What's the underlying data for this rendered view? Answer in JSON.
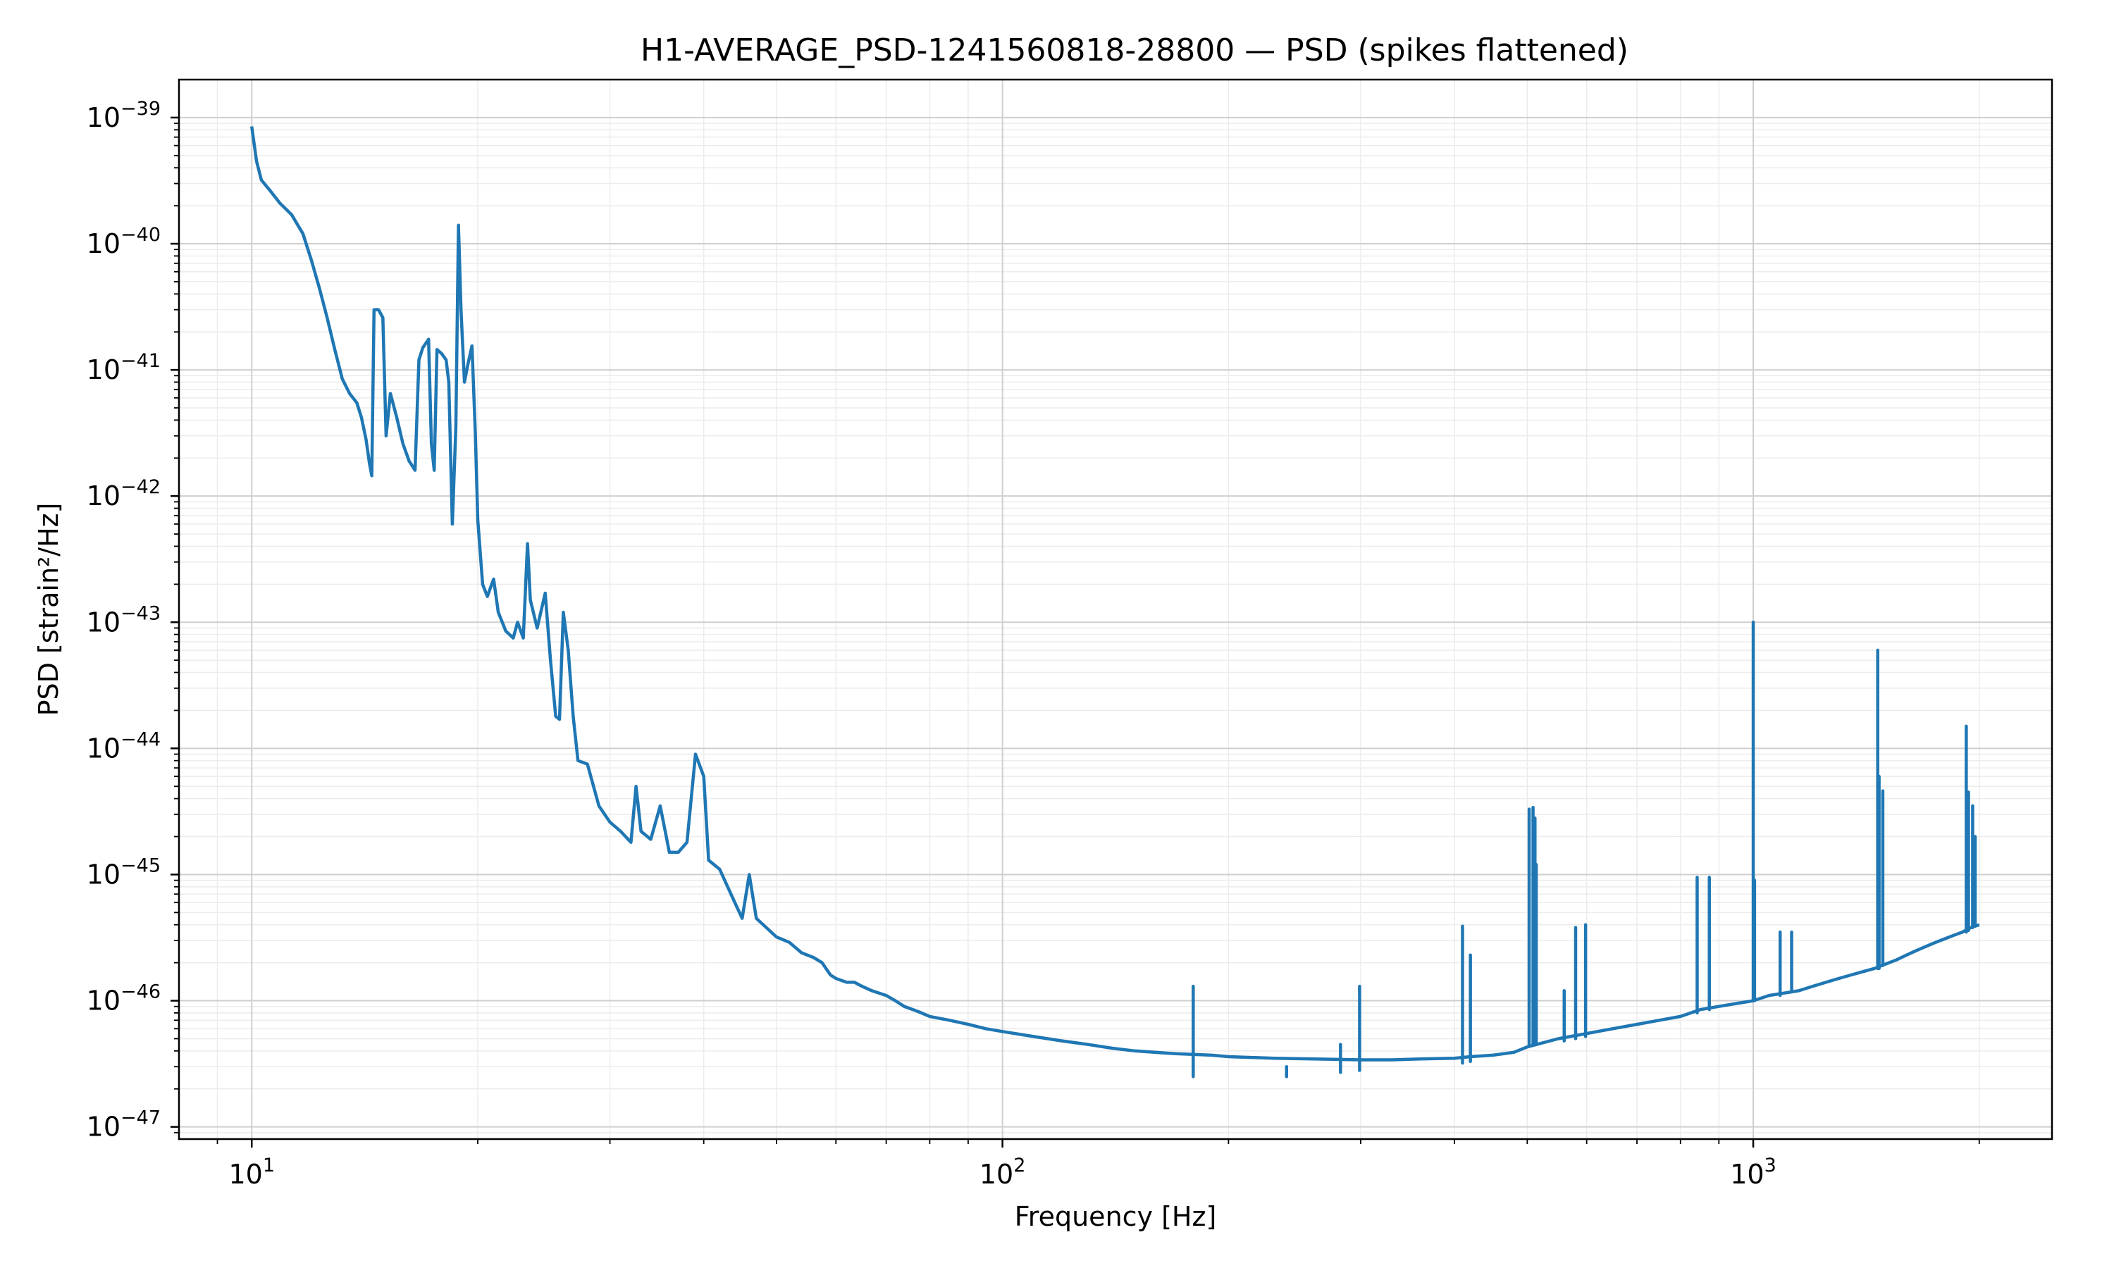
{
  "chart_data": {
    "type": "line",
    "title": "H1-AVERAGE_PSD-1241560818-28800 — PSD (spikes flattened)",
    "xlabel": "Frequency [Hz]",
    "ylabel": "PSD [strain²/Hz]",
    "xscale": "log",
    "yscale": "log",
    "xlim": [
      8,
      2500
    ],
    "ylim": [
      8e-48,
      2e-39
    ],
    "grid": true,
    "legend": "none",
    "line_color": "#1f77b4",
    "x_ticks": [
      {
        "base": "10",
        "exp": "1",
        "value": 10
      },
      {
        "base": "10",
        "exp": "2",
        "value": 100
      },
      {
        "base": "10",
        "exp": "3",
        "value": 1000
      }
    ],
    "y_ticks": [
      {
        "base": "10",
        "exp": "−39",
        "value": 1e-39
      },
      {
        "base": "10",
        "exp": "−40",
        "value": 1e-40
      },
      {
        "base": "10",
        "exp": "−41",
        "value": 1e-41
      },
      {
        "base": "10",
        "exp": "−42",
        "value": 1e-42
      },
      {
        "base": "10",
        "exp": "−43",
        "value": 1e-43
      },
      {
        "base": "10",
        "exp": "−44",
        "value": 1e-44
      },
      {
        "base": "10",
        "exp": "−45",
        "value": 1e-45
      },
      {
        "base": "10",
        "exp": "−46",
        "value": 1e-46
      },
      {
        "base": "10",
        "exp": "−47",
        "value": 1e-47
      }
    ],
    "series": [
      {
        "points": [
          [
            10,
            8.5e-40
          ],
          [
            10.15,
            4.5e-40
          ],
          [
            10.3,
            3.2e-40
          ],
          [
            10.6,
            2.6e-40
          ],
          [
            10.9,
            2.1e-40
          ],
          [
            11.3,
            1.7e-40
          ],
          [
            11.7,
            1.2e-40
          ],
          [
            12.0,
            7.5e-41
          ],
          [
            12.3,
            4.5e-41
          ],
          [
            12.6,
            2.6e-41
          ],
          [
            12.9,
            1.45e-41
          ],
          [
            13.2,
            8.5e-42
          ],
          [
            13.5,
            6.5e-42
          ],
          [
            13.8,
            5.5e-42
          ],
          [
            14.0,
            4.2e-42
          ],
          [
            14.2,
            2.8e-42
          ],
          [
            14.35,
            1.8e-42
          ],
          [
            14.45,
            1.45e-42
          ],
          [
            14.55,
            3e-41
          ],
          [
            14.75,
            3e-41
          ],
          [
            14.95,
            2.6e-41
          ],
          [
            15.1,
            3e-42
          ],
          [
            15.3,
            6.5e-42
          ],
          [
            15.6,
            4.2e-42
          ],
          [
            15.9,
            2.6e-42
          ],
          [
            16.2,
            1.9e-42
          ],
          [
            16.5,
            1.6e-42
          ],
          [
            16.7,
            1.2e-41
          ],
          [
            16.9,
            1.5e-41
          ],
          [
            17.2,
            1.75e-41
          ],
          [
            17.35,
            2.6e-42
          ],
          [
            17.5,
            1.6e-42
          ],
          [
            17.65,
            1.45e-41
          ],
          [
            17.9,
            1.35e-41
          ],
          [
            18.15,
            1.2e-41
          ],
          [
            18.3,
            8e-42
          ],
          [
            18.5,
            6e-43
          ],
          [
            18.7,
            3.5e-42
          ],
          [
            18.85,
            1.4e-40
          ],
          [
            19.0,
            3e-41
          ],
          [
            19.2,
            8e-42
          ],
          [
            19.4,
            1.1e-41
          ],
          [
            19.65,
            1.55e-41
          ],
          [
            19.85,
            3.2e-42
          ],
          [
            20.0,
            6.5e-43
          ],
          [
            20.3,
            2e-43
          ],
          [
            20.6,
            1.6e-43
          ],
          [
            21.0,
            2.2e-43
          ],
          [
            21.3,
            1.2e-43
          ],
          [
            21.8,
            8.5e-44
          ],
          [
            22.3,
            7.5e-44
          ],
          [
            22.6,
            1e-43
          ],
          [
            23.0,
            7.5e-44
          ],
          [
            23.3,
            4.2e-43
          ],
          [
            23.5,
            1.5e-43
          ],
          [
            24.0,
            9e-44
          ],
          [
            24.6,
            1.7e-43
          ],
          [
            25.0,
            5e-44
          ],
          [
            25.4,
            1.8e-44
          ],
          [
            25.7,
            1.7e-44
          ],
          [
            26.0,
            1.2e-43
          ],
          [
            26.4,
            6e-44
          ],
          [
            26.8,
            1.8e-44
          ],
          [
            27.2,
            8e-45
          ],
          [
            28.0,
            7.5e-45
          ],
          [
            29.0,
            3.5e-45
          ],
          [
            30.0,
            2.6e-45
          ],
          [
            31.0,
            2.2e-45
          ],
          [
            32.0,
            1.8e-45
          ],
          [
            32.5,
            5e-45
          ],
          [
            33.0,
            2.2e-45
          ],
          [
            34.0,
            1.9e-45
          ],
          [
            35.0,
            3.5e-45
          ],
          [
            36.0,
            1.5e-45
          ],
          [
            37.0,
            1.5e-45
          ],
          [
            38.0,
            1.8e-45
          ],
          [
            39.0,
            9e-45
          ],
          [
            40.0,
            6e-45
          ],
          [
            40.6,
            1.3e-45
          ],
          [
            42.0,
            1.1e-45
          ],
          [
            44.0,
            6e-46
          ],
          [
            45.0,
            4.5e-46
          ],
          [
            46.0,
            1e-45
          ],
          [
            47.0,
            4.5e-46
          ],
          [
            50.0,
            3.2e-46
          ],
          [
            52.0,
            2.9e-46
          ],
          [
            54.0,
            2.4e-46
          ],
          [
            56.0,
            2.2e-46
          ],
          [
            57.5,
            2e-46
          ],
          [
            59.0,
            1.6e-46
          ],
          [
            60.0,
            1.5e-46
          ],
          [
            62.0,
            1.4e-46
          ],
          [
            63.5,
            1.4e-46
          ],
          [
            65.0,
            1.3e-46
          ],
          [
            67.0,
            1.2e-46
          ],
          [
            70.0,
            1.1e-46
          ],
          [
            72.0,
            1e-46
          ],
          [
            74.0,
            9e-47
          ],
          [
            76.0,
            8.5e-47
          ],
          [
            78.0,
            8e-47
          ],
          [
            80.0,
            7.5e-47
          ],
          [
            85.0,
            7e-47
          ],
          [
            90.0,
            6.5e-47
          ],
          [
            95.0,
            6e-47
          ],
          [
            100.0,
            5.7e-47
          ],
          [
            110.0,
            5.2e-47
          ],
          [
            120.0,
            4.8e-47
          ],
          [
            130.0,
            4.5e-47
          ],
          [
            140.0,
            4.2e-47
          ],
          [
            150.0,
            4e-47
          ],
          [
            170.0,
            3.8e-47
          ],
          [
            190.0,
            3.7e-47
          ],
          [
            200.0,
            3.6e-47
          ],
          [
            230.0,
            3.5e-47
          ],
          [
            260.0,
            3.45e-47
          ],
          [
            300.0,
            3.4e-47
          ],
          [
            330.0,
            3.4e-47
          ],
          [
            360.0,
            3.45e-47
          ],
          [
            400.0,
            3.5e-47
          ],
          [
            420.0,
            3.6e-47
          ],
          [
            450.0,
            3.7e-47
          ],
          [
            480.0,
            3.9e-47
          ],
          [
            500.0,
            4.3e-47
          ],
          [
            550.0,
            5e-47
          ],
          [
            600.0,
            5.5e-47
          ],
          [
            650.0,
            6e-47
          ],
          [
            700.0,
            6.5e-47
          ],
          [
            750.0,
            7e-47
          ],
          [
            800.0,
            7.5e-47
          ],
          [
            850.0,
            8.5e-47
          ],
          [
            900.0,
            9e-47
          ],
          [
            950.0,
            9.5e-47
          ],
          [
            1000.0,
            1e-46
          ],
          [
            1050.0,
            1.1e-46
          ],
          [
            1100.0,
            1.15e-46
          ],
          [
            1150.0,
            1.2e-46
          ],
          [
            1200.0,
            1.3e-46
          ],
          [
            1250.0,
            1.4e-46
          ],
          [
            1300.0,
            1.5e-46
          ],
          [
            1350.0,
            1.6e-46
          ],
          [
            1400.0,
            1.7e-46
          ],
          [
            1450.0,
            1.8e-46
          ],
          [
            1500.0,
            1.95e-46
          ],
          [
            1550.0,
            2.1e-46
          ],
          [
            1600.0,
            2.3e-46
          ],
          [
            1650.0,
            2.5e-46
          ],
          [
            1700.0,
            2.7e-46
          ],
          [
            1750.0,
            2.9e-46
          ],
          [
            1800.0,
            3.1e-46
          ],
          [
            1850.0,
            3.3e-46
          ],
          [
            1900.0,
            3.5e-46
          ],
          [
            1950.0,
            3.8e-46
          ],
          [
            2000.0,
            4e-46
          ]
        ]
      }
    ],
    "spikes": [
      [
        179.5,
        2.5e-47,
        1.3e-46
      ],
      [
        239,
        2.5e-47,
        3e-47
      ],
      [
        282,
        2.7e-47,
        4.5e-47
      ],
      [
        299,
        2.8e-47,
        1.3e-46
      ],
      [
        410,
        3.2e-47,
        3.9e-46
      ],
      [
        420,
        3.3e-47,
        2.3e-46
      ],
      [
        503,
        4.5e-47,
        3.3e-45
      ],
      [
        509,
        4.5e-47,
        3.4e-45
      ],
      [
        512,
        4.5e-47,
        2.8e-45
      ],
      [
        514,
        4.5e-47,
        1.2e-45
      ],
      [
        560,
        4.8e-47,
        1.2e-46
      ],
      [
        580,
        5e-47,
        3.8e-46
      ],
      [
        598,
        5.2e-47,
        4e-46
      ],
      [
        842,
        8e-47,
        9.5e-46
      ],
      [
        874,
        8.5e-47,
        9.5e-46
      ],
      [
        1000,
        1e-46,
        1e-43
      ],
      [
        1004,
        1e-46,
        9e-46
      ],
      [
        1086,
        1.1e-46,
        3.5e-46
      ],
      [
        1125,
        1.2e-46,
        3.5e-46
      ],
      [
        1465,
        1.8e-46,
        6e-44
      ],
      [
        1471,
        1.8e-46,
        6e-45
      ],
      [
        1488,
        1.9e-46,
        4.6e-45
      ],
      [
        1922,
        3.5e-46,
        1.5e-44
      ],
      [
        1935,
        3.6e-46,
        4.5e-45
      ],
      [
        1960,
        3.8e-46,
        3.5e-45
      ],
      [
        1975,
        3.9e-46,
        2e-45
      ]
    ]
  }
}
